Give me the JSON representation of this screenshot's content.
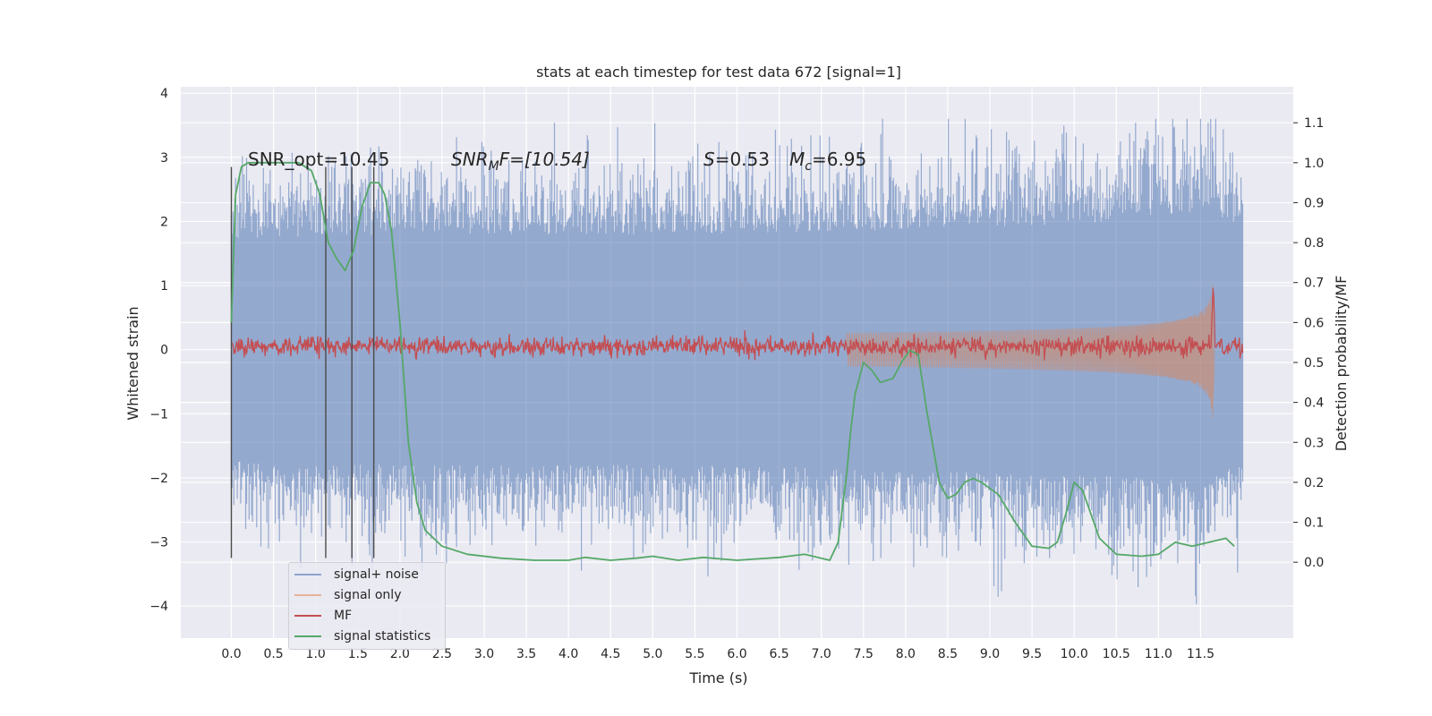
{
  "chart_data": {
    "type": "line",
    "title": "stats at each timestep for test data 672 [signal=1]",
    "xlabel": "Time (s)",
    "ylabel": "Whitened strain",
    "y2label": "Detection probability/MF",
    "xlim": [
      -0.6,
      12.6
    ],
    "ylim": [
      -4.5,
      4.1
    ],
    "y2lim": [
      -0.19,
      1.19
    ],
    "x_ticks": [
      "0.0",
      "0.5",
      "1.0",
      "1.5",
      "2.0",
      "2.5",
      "3.0",
      "3.5",
      "4.0",
      "4.5",
      "5.0",
      "5.5",
      "6.0",
      "6.5",
      "7.0",
      "7.5",
      "8.0",
      "8.5",
      "9.0",
      "9.5",
      "10.0",
      "10.5",
      "11.0",
      "11.5"
    ],
    "y_ticks": [
      "4",
      "3",
      "2",
      "1",
      "0",
      "−1",
      "−2",
      "−3",
      "−4"
    ],
    "y2_ticks": [
      "1.1",
      "1.0",
      "0.9",
      "0.8",
      "0.7",
      "0.6",
      "0.5",
      "0.4",
      "0.3",
      "0.2",
      "0.1",
      "0.0"
    ],
    "grid": true,
    "legend_position": "lower-left",
    "annotations": {
      "snr_opt": "SNR_opt=10.45",
      "snr_mf_label": "SNR",
      "snr_mf_sub": "M",
      "snr_mf_rest": "F=[10.54]",
      "s_label": "S",
      "s_value": "=0.53",
      "mc_label": "M",
      "mc_sub": "c",
      "mc_value": "=6.95"
    },
    "vertical_markers": [
      0.0,
      1.12,
      1.43,
      1.69
    ],
    "series": [
      {
        "name": "signal+ noise",
        "color": "#4c72b0",
        "axis": "left",
        "envelope": {
          "x": [
            0.0,
            2.0,
            4.0,
            6.0,
            8.0,
            10.0,
            11.6,
            12.0
          ],
          "upper": [
            2.3,
            2.4,
            2.4,
            2.4,
            2.5,
            2.6,
            2.9,
            2.5
          ],
          "lower": [
            -2.3,
            -2.4,
            -2.4,
            -2.4,
            -2.5,
            -2.6,
            -2.7,
            -2.3
          ]
        }
      },
      {
        "name": "signal only",
        "color": "#dd8452",
        "axis": "left",
        "chirp": {
          "start": 7.3,
          "merger": 11.65,
          "end": 11.67,
          "peak_amp": 0.8
        }
      },
      {
        "name": "MF",
        "color": "#c44e52",
        "axis": "right",
        "baseline": 0.54,
        "spike": {
          "x": 11.65,
          "y": 0.7
        }
      },
      {
        "name": "signal statistics",
        "color": "#55a868",
        "axis": "right",
        "x": [
          0.0,
          0.05,
          0.12,
          0.2,
          0.4,
          0.6,
          0.8,
          0.95,
          1.05,
          1.15,
          1.25,
          1.35,
          1.45,
          1.55,
          1.65,
          1.75,
          1.82,
          1.9,
          2.0,
          2.1,
          2.2,
          2.3,
          2.5,
          2.8,
          3.2,
          3.6,
          4.0,
          4.2,
          4.5,
          4.8,
          5.0,
          5.3,
          5.6,
          6.0,
          6.5,
          6.8,
          7.0,
          7.1,
          7.2,
          7.3,
          7.35,
          7.4,
          7.5,
          7.6,
          7.7,
          7.85,
          7.95,
          8.05,
          8.15,
          8.25,
          8.4,
          8.5,
          8.6,
          8.7,
          8.8,
          8.9,
          9.1,
          9.3,
          9.5,
          9.7,
          9.8,
          9.9,
          10.0,
          10.1,
          10.2,
          10.3,
          10.5,
          10.8,
          11.0,
          11.2,
          11.4,
          11.6,
          11.8,
          11.9
        ],
        "y": [
          0.6,
          0.92,
          0.99,
          1.0,
          1.0,
          1.0,
          1.0,
          0.98,
          0.92,
          0.8,
          0.76,
          0.73,
          0.78,
          0.89,
          0.95,
          0.95,
          0.92,
          0.83,
          0.6,
          0.3,
          0.15,
          0.08,
          0.04,
          0.02,
          0.01,
          0.005,
          0.005,
          0.012,
          0.005,
          0.01,
          0.015,
          0.005,
          0.012,
          0.005,
          0.012,
          0.02,
          0.01,
          0.005,
          0.05,
          0.22,
          0.33,
          0.42,
          0.5,
          0.48,
          0.45,
          0.46,
          0.5,
          0.53,
          0.52,
          0.38,
          0.2,
          0.16,
          0.17,
          0.2,
          0.21,
          0.2,
          0.17,
          0.1,
          0.04,
          0.035,
          0.05,
          0.12,
          0.2,
          0.18,
          0.12,
          0.06,
          0.02,
          0.015,
          0.02,
          0.05,
          0.04,
          0.05,
          0.06,
          0.04
        ]
      }
    ]
  }
}
